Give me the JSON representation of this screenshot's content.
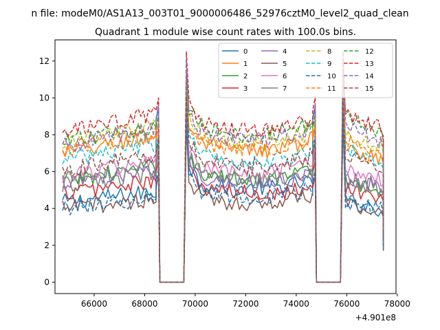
{
  "chart_data": {
    "type": "line",
    "suptitle": "n file: modeM0/AS1A13_003T01_9000006486_52976cztM0_level2_quad_clean",
    "title": "Quadrant 1 module wise count rates with 100.0s bins.",
    "xlabel": "",
    "ylabel": "",
    "x_offset_label": "+4.901e8",
    "xlim": [
      64450,
      77950
    ],
    "ylim": [
      -0.62,
      13.15
    ],
    "x_ticks": [
      66000,
      68000,
      70000,
      72000,
      74000,
      76000,
      78000
    ],
    "x_tick_labels": [
      "66000",
      "68000",
      "70000",
      "72000",
      "74000",
      "76000",
      "78000"
    ],
    "y_ticks": [
      0,
      2,
      4,
      6,
      8,
      10,
      12
    ],
    "y_tick_labels": [
      "0",
      "2",
      "4",
      "6",
      "8",
      "10",
      "12"
    ],
    "grid": false,
    "legend_position": "top-right",
    "segments": [
      {
        "kind": "data",
        "x_start": 64750,
        "x_end": 68450
      },
      {
        "kind": "peak",
        "x_start": 68450,
        "x_end": 68550
      },
      {
        "kind": "drop",
        "x": 68600
      },
      {
        "kind": "gap",
        "x_start": 68600,
        "x_end": 69550
      },
      {
        "kind": "spike",
        "x": 69650
      },
      {
        "kind": "data",
        "x_start": 69750,
        "x_end": 74650
      },
      {
        "kind": "peak",
        "x_start": 74650,
        "x_end": 74750
      },
      {
        "kind": "drop",
        "x": 74800
      },
      {
        "kind": "gap",
        "x_start": 74800,
        "x_end": 75750
      },
      {
        "kind": "spike",
        "x": 75850
      },
      {
        "kind": "data",
        "x_start": 75950,
        "x_end": 77450
      }
    ],
    "series": [
      {
        "name": "0",
        "color": "#1f77b4",
        "dashed": false,
        "level": 4.35,
        "level2": 5.3,
        "level3": 3.95,
        "peak": 9.5,
        "spike": 10.3,
        "end": 1.9
      },
      {
        "name": "1",
        "color": "#ff7f0e",
        "dashed": false,
        "level": 7.0,
        "level2": 7.45,
        "level3": 6.6,
        "peak": 8.4,
        "spike": 11.2,
        "end": 2.6
      },
      {
        "name": "2",
        "color": "#2ca02c",
        "dashed": false,
        "level": 5.55,
        "level2": 5.85,
        "level3": 4.95,
        "peak": 7.6,
        "spike": 8.9,
        "end": 2.2
      },
      {
        "name": "3",
        "color": "#d62728",
        "dashed": false,
        "level": 4.85,
        "level2": 5.05,
        "level3": 4.55,
        "peak": 6.6,
        "spike": 9.4,
        "end": 2.0
      },
      {
        "name": "4",
        "color": "#9467bd",
        "dashed": false,
        "level": 5.35,
        "level2": 5.65,
        "level3": 5.15,
        "peak": 7.2,
        "spike": 9.6,
        "end": 2.1
      },
      {
        "name": "5",
        "color": "#8c564b",
        "dashed": false,
        "level": 4.0,
        "level2": 4.5,
        "level3": 3.75,
        "peak": 5.8,
        "spike": 8.7,
        "end": 1.7
      },
      {
        "name": "6",
        "color": "#e377c2",
        "dashed": false,
        "level": 5.8,
        "level2": 6.15,
        "level3": 5.55,
        "peak": 7.4,
        "spike": 9.8,
        "end": 2.3
      },
      {
        "name": "7",
        "color": "#7f7f7f",
        "dashed": false,
        "level": 5.25,
        "level2": 5.75,
        "level3": 5.0,
        "peak": 7.0,
        "spike": 9.2,
        "end": 2.1
      },
      {
        "name": "8",
        "color": "#bcbd22",
        "dashed": true,
        "level": 7.55,
        "level2": 7.9,
        "level3": 7.2,
        "peak": 8.9,
        "spike": 11.0,
        "end": 2.8
      },
      {
        "name": "9",
        "color": "#17becf",
        "dashed": true,
        "level": 6.65,
        "level2": 6.85,
        "level3": 6.45,
        "peak": 8.0,
        "spike": 10.5,
        "end": 2.5
      },
      {
        "name": "10",
        "color": "#1f77b4",
        "dashed": true,
        "level": 4.05,
        "level2": 4.85,
        "level3": 3.95,
        "peak": 6.1,
        "spike": 9.0,
        "end": 1.8
      },
      {
        "name": "11",
        "color": "#ff7f0e",
        "dashed": true,
        "level": 7.2,
        "level2": 7.55,
        "level3": 6.95,
        "peak": 8.6,
        "spike": 11.3,
        "end": 2.7
      },
      {
        "name": "12",
        "color": "#2ca02c",
        "dashed": true,
        "level": 7.55,
        "level2": 8.35,
        "level3": 8.0,
        "peak": 9.1,
        "spike": 11.4,
        "end": 3.0
      },
      {
        "name": "13",
        "color": "#d62728",
        "dashed": true,
        "level": 8.1,
        "level2": 8.55,
        "level3": 8.3,
        "peak": 10.0,
        "spike": 12.5,
        "end": 3.1
      },
      {
        "name": "14",
        "color": "#9467bd",
        "dashed": true,
        "level": 7.4,
        "level2": 8.05,
        "level3": 7.6,
        "peak": 9.6,
        "spike": 12.1,
        "end": 2.9
      },
      {
        "name": "15",
        "color": "#8c564b",
        "dashed": true,
        "level": 6.1,
        "level2": 6.6,
        "level3": 6.2,
        "peak": 7.8,
        "spike": 10.1,
        "end": 2.4
      }
    ]
  }
}
